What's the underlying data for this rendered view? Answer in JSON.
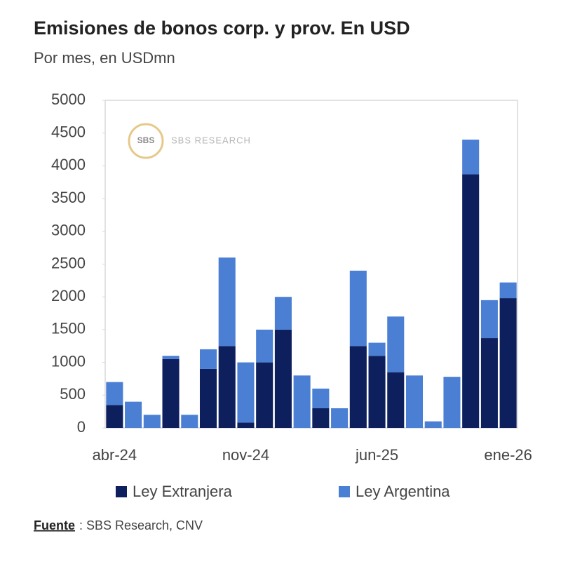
{
  "chart_data": {
    "type": "stacked_bar",
    "title": "Emisiones de bonos corp. y prov. En USD",
    "subtitle": "Por mes, en USDmn",
    "watermark": "SBS RESEARCH",
    "source_label": "Fuente",
    "source_text": ": SBS Research, CNV",
    "categories": [
      "abr-24",
      null,
      null,
      null,
      null,
      null,
      null,
      "nov-24",
      null,
      null,
      null,
      null,
      null,
      null,
      "jun-25",
      null,
      null,
      null,
      null,
      null,
      null,
      "ene-26"
    ],
    "series": [
      {
        "name": "Ley Extranjera",
        "color": "#0d1f5c",
        "values": [
          350,
          0,
          0,
          1050,
          0,
          900,
          1250,
          80,
          1000,
          1500,
          0,
          300,
          0,
          1250,
          1100,
          850,
          0,
          0,
          0,
          3870,
          1370,
          1980
        ]
      },
      {
        "name": "Ley Argentina",
        "color": "#4a7fd4",
        "values": [
          350,
          400,
          200,
          50,
          200,
          300,
          1350,
          920,
          500,
          500,
          800,
          300,
          300,
          1150,
          200,
          850,
          800,
          100,
          780,
          530,
          580,
          240
        ]
      }
    ],
    "ylim": [
      0,
      5000
    ],
    "yticks": [
      0,
      500,
      1000,
      1500,
      2000,
      2500,
      3000,
      3500,
      4000,
      4500,
      5000
    ],
    "grid": false
  }
}
